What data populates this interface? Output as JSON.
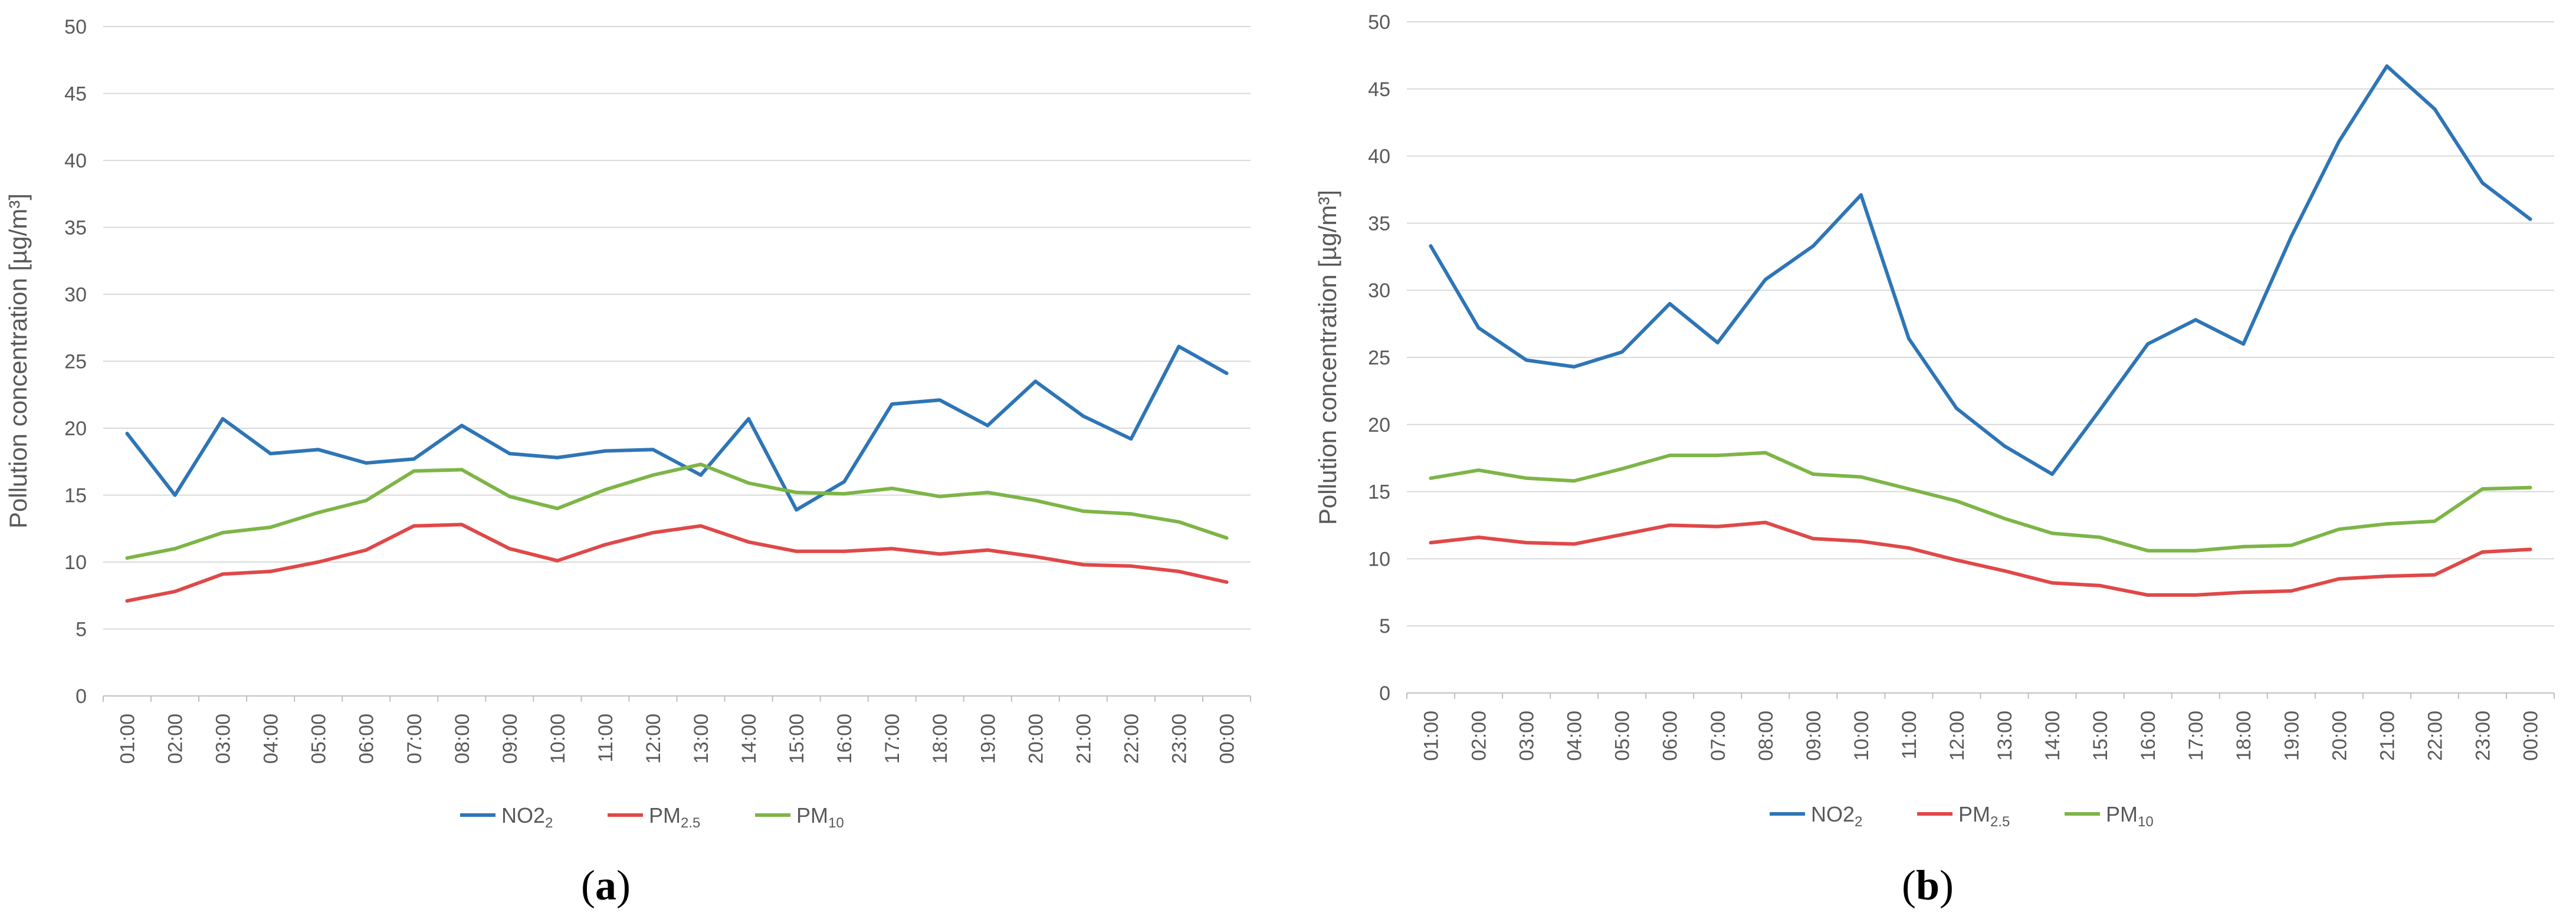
{
  "chart_data": [
    {
      "panel": "a",
      "type": "line",
      "title": "",
      "xlabel": "",
      "ylabel": "Pollution concentration [µg/m³]",
      "ylim": [
        0,
        50
      ],
      "yticks": [
        0,
        5,
        10,
        15,
        20,
        25,
        30,
        35,
        40,
        45,
        50
      ],
      "grid": true,
      "legend_position": "bottom",
      "categories": [
        "01:00",
        "02:00",
        "03:00",
        "04:00",
        "05:00",
        "06:00",
        "07:00",
        "08:00",
        "09:00",
        "10:00",
        "11:00",
        "12:00",
        "13:00",
        "14:00",
        "15:00",
        "16:00",
        "17:00",
        "18:00",
        "19:00",
        "20:00",
        "21:00",
        "22:00",
        "23:00",
        "00:00"
      ],
      "series": [
        {
          "name": "NO2",
          "sub": "2",
          "color": "#2E75B6",
          "values": [
            19.6,
            15.0,
            20.7,
            18.1,
            18.4,
            17.4,
            17.7,
            20.2,
            18.1,
            17.8,
            18.3,
            18.4,
            16.5,
            20.7,
            13.9,
            16.0,
            21.8,
            22.1,
            20.2,
            23.5,
            20.9,
            19.2,
            26.1,
            24.1
          ]
        },
        {
          "name": "PM",
          "sub": "2.5",
          "color": "#E04848",
          "values": [
            7.1,
            7.8,
            9.1,
            9.3,
            10.0,
            10.9,
            12.7,
            12.8,
            11.0,
            10.1,
            11.3,
            12.2,
            12.7,
            11.5,
            10.8,
            10.8,
            11.0,
            10.6,
            10.9,
            10.4,
            9.8,
            9.7,
            9.3,
            8.5
          ]
        },
        {
          "name": "PM",
          "sub": "10",
          "color": "#7DB547",
          "values": [
            10.3,
            11.0,
            12.2,
            12.6,
            13.7,
            14.6,
            16.8,
            16.9,
            14.9,
            14.0,
            15.4,
            16.5,
            17.3,
            15.9,
            15.2,
            15.1,
            15.5,
            14.9,
            15.2,
            14.6,
            13.8,
            13.6,
            13.0,
            11.8
          ]
        }
      ]
    },
    {
      "panel": "b",
      "type": "line",
      "title": "",
      "xlabel": "",
      "ylabel": "Pollution concentration [µg/m³]",
      "ylim": [
        0,
        50
      ],
      "yticks": [
        0,
        5,
        10,
        15,
        20,
        25,
        30,
        35,
        40,
        45,
        50
      ],
      "grid": true,
      "legend_position": "bottom",
      "categories": [
        "01:00",
        "02:00",
        "03:00",
        "04:00",
        "05:00",
        "06:00",
        "07:00",
        "08:00",
        "09:00",
        "10:00",
        "11:00",
        "12:00",
        "13:00",
        "14:00",
        "15:00",
        "16:00",
        "17:00",
        "18:00",
        "19:00",
        "20:00",
        "21:00",
        "22:00",
        "23:00",
        "00:00"
      ],
      "series": [
        {
          "name": "NO2",
          "sub": "2",
          "color": "#2E75B6",
          "values": [
            33.3,
            27.2,
            24.8,
            24.3,
            25.4,
            29.0,
            26.1,
            30.8,
            33.3,
            37.1,
            26.4,
            21.2,
            18.4,
            16.3,
            21.1,
            26.0,
            27.8,
            26.0,
            34.0,
            41.1,
            46.7,
            43.5,
            38.0,
            35.3
          ]
        },
        {
          "name": "PM",
          "sub": "2.5",
          "color": "#E04848",
          "values": [
            11.2,
            11.6,
            11.2,
            11.1,
            11.8,
            12.5,
            12.4,
            12.7,
            11.5,
            11.3,
            10.8,
            9.9,
            9.1,
            8.2,
            8.0,
            7.3,
            7.3,
            7.5,
            7.6,
            8.5,
            8.7,
            8.8,
            10.5,
            10.7
          ]
        },
        {
          "name": "PM",
          "sub": "10",
          "color": "#7DB547",
          "values": [
            16.0,
            16.6,
            16.0,
            15.8,
            16.7,
            17.7,
            17.7,
            17.9,
            16.3,
            16.1,
            15.2,
            14.3,
            13.0,
            11.9,
            11.6,
            10.6,
            10.6,
            10.9,
            11.0,
            12.2,
            12.6,
            12.8,
            15.2,
            15.3
          ]
        }
      ]
    }
  ],
  "panel_labels": [
    {
      "open": "(",
      "letter": "a",
      "close": ")"
    },
    {
      "open": "(",
      "letter": "b",
      "close": ")"
    }
  ]
}
